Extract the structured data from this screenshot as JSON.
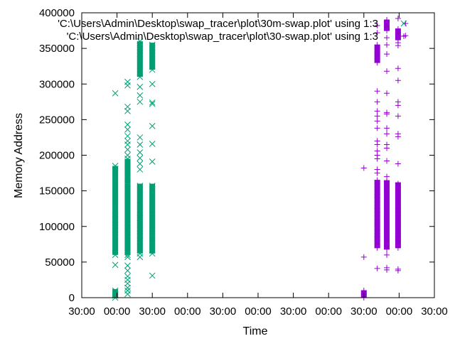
{
  "chart_data": {
    "type": "scatter",
    "xlabel": "Time",
    "ylabel": "Memory Address",
    "ylim": [
      0,
      400000
    ],
    "y_ticks": [
      "0",
      "50000",
      "100000",
      "150000",
      "200000",
      "250000",
      "300000",
      "350000",
      "400000"
    ],
    "x_ticks": [
      "30:00",
      "00:00",
      "30:00",
      "00:00",
      "30:00",
      "00:00",
      "30:00",
      "00:00",
      "30:00",
      "00:00",
      "30:00"
    ],
    "grid": false,
    "legend_position": "top-right",
    "series": [
      {
        "name": "'C:\\Users\\Admin\\Desktop\\swap_tracer\\plot\\30m-swap.plot' using 1:3",
        "marker": "x",
        "color": "#009e73",
        "columns": [
          {
            "x": 0.95,
            "bands": [
              [
                60000,
                185000
              ],
              [
                0,
                12000
              ]
            ],
            "points": [
              287000,
              115000,
              110000,
              46000,
              8000,
              3000
            ]
          },
          {
            "x": 1.3,
            "bands": [
              [
                60000,
                160000
              ],
              [
                160000,
                195000
              ]
            ],
            "points": [
              303000,
              298000,
              268000,
              262000,
              243000,
              236000,
              227000,
              220000,
              215000,
              208000,
              200000,
              57000,
              45000,
              38000,
              30000,
              25000,
              20000,
              14000,
              10000,
              5000
            ]
          },
          {
            "x": 1.65,
            "bands": [
              [
                62000,
                160000
              ],
              [
                310000,
                360000
              ]
            ],
            "points": [
              296000,
              284000,
              275000,
              225000,
              215000,
              204000,
              196000,
              188000,
              180000,
              112000,
              57000
            ]
          },
          {
            "x": 2.0,
            "bands": [
              [
                62000,
                160000
              ],
              [
                320000,
                358000
              ]
            ],
            "points": [
              300000,
              274000,
              272000,
              241000,
              216000,
              191000,
              31000
            ]
          }
        ]
      },
      {
        "name": "'C:\\Users\\Admin\\Desktop\\swap_tracer\\plot\\30-swap.plot' using 1:3",
        "marker": "+",
        "color": "#9400d3",
        "columns": [
          {
            "x": 8.0,
            "bands": [
              [
                0,
                10000
              ]
            ],
            "points": [
              182000,
              57000
            ]
          },
          {
            "x": 8.38,
            "bands": [
              [
                70000,
                165000
              ],
              [
                330000,
                355000
              ]
            ],
            "points": [
              382000,
              372000,
              290000,
              275000,
              262000,
              255000,
              248000,
              238000,
              220000,
              215000,
              206000,
              200000,
              195000,
              180000,
              175000,
              41000
            ]
          },
          {
            "x": 8.65,
            "bands": [
              [
                68000,
                165000
              ],
              [
                375000,
                390000
              ]
            ],
            "points": [
              365000,
              355000,
              342000,
              318000,
              287000,
              260000,
              258000,
              238000,
              230000,
              215000,
              210000,
              192000,
              170000,
              60000,
              42000,
              39000
            ]
          },
          {
            "x": 8.97,
            "bands": [
              [
                70000,
                162000
              ],
              [
                362000,
                378000
              ]
            ],
            "points": [
              392000,
              358000,
              354000,
              322000,
              305000,
              275000,
              270000,
              255000,
              230000,
              226000,
              188000,
              40000,
              38000
            ]
          },
          {
            "x": 9.18,
            "bands": [],
            "points": [
              385000,
              368000
            ]
          }
        ]
      }
    ]
  }
}
